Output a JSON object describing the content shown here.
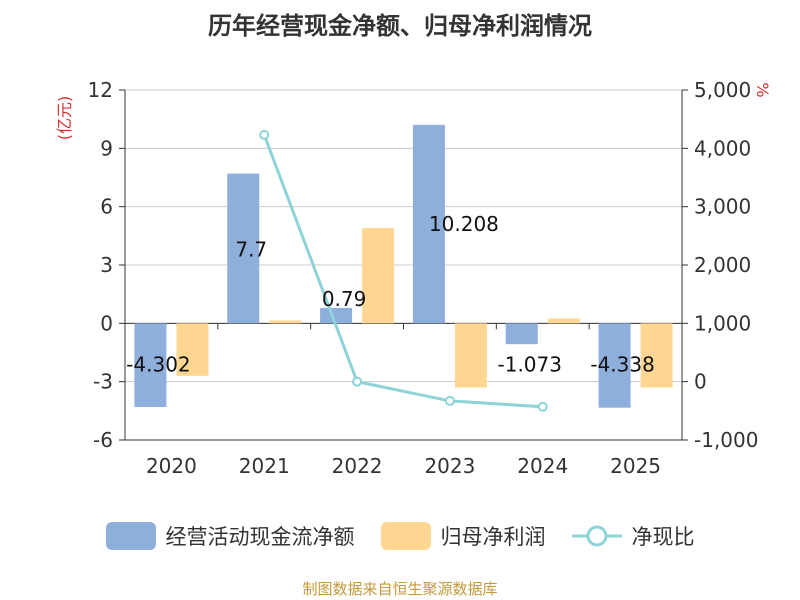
{
  "chart_data": {
    "type": "bar",
    "title": "历年经营现金净额、归母净利润情况",
    "categories": [
      "2020",
      "2021",
      "2022",
      "2023",
      "2024",
      "2025"
    ],
    "series": [
      {
        "name": "经营活动现金流净额",
        "kind": "bar",
        "axis": "left",
        "values": [
          -4.302,
          7.7,
          0.79,
          10.208,
          -1.073,
          -4.338
        ]
      },
      {
        "name": "归母净利润",
        "kind": "bar",
        "axis": "left",
        "values": [
          -2.7,
          0.15,
          4.9,
          -3.3,
          0.25,
          -3.3
        ]
      },
      {
        "name": "净现比",
        "kind": "line",
        "axis": "right",
        "values": [
          null,
          4230,
          0,
          -330,
          -430,
          null
        ]
      }
    ],
    "data_labels": [
      "-4.302",
      "7.7",
      "0.79",
      "10.208",
      "-1.073",
      "-4.338"
    ],
    "y_left": {
      "label": "(亿元)",
      "ylim": [
        -6,
        12
      ],
      "ticks": [
        "12",
        "9",
        "6",
        "3",
        "0",
        "-3",
        "-6"
      ]
    },
    "y_right": {
      "label": "%",
      "ylim": [
        -1000,
        5000
      ],
      "ticks": [
        "5,000",
        "4,000",
        "3,000",
        "2,000",
        "1,000",
        "0",
        "-1,000"
      ]
    },
    "grid": true,
    "legend_position": "bottom",
    "colors": {
      "bar1": "#8eaedb",
      "bar2": "#ffd793",
      "line": "#8dd3d8",
      "axis_label": "#d32f2f"
    }
  },
  "source": "制图数据来自恒生聚源数据库"
}
